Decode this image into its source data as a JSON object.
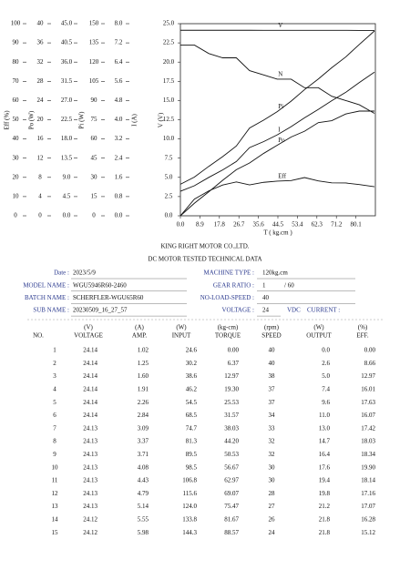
{
  "chart_data": {
    "type": "line",
    "x_label": "T ( kg.cm )",
    "xlim": [
      0,
      89
    ],
    "xticks": [
      {
        "value": 0,
        "label": "0.0"
      },
      8.9,
      17.8,
      26.7,
      35.6,
      44.5,
      53.4,
      62.3,
      71.2,
      80.1
    ],
    "x": [
      0,
      6.37,
      12.97,
      19.3,
      25.53,
      31.57,
      38.03,
      44.2,
      50.53,
      56.67,
      62.97,
      69.07,
      75.47,
      81.67,
      88.57
    ],
    "axes": [
      {
        "label": "Eff (%)",
        "ylim": [
          0,
          100
        ],
        "yticks": [
          0,
          10,
          20,
          30,
          40,
          50,
          60,
          70,
          80,
          90,
          100
        ]
      },
      {
        "label": "Po (W)",
        "ylim": [
          0,
          40
        ],
        "yticks": [
          0,
          4,
          8,
          12,
          16,
          20,
          24,
          28,
          32,
          36,
          40
        ]
      },
      {
        "ylim": [
          0,
          45
        ],
        "yticks": [
          {
            "value": 0,
            "label": "0.0"
          },
          4.5,
          {
            "value": 9,
            "label": "9.0"
          },
          13.5,
          {
            "value": 18,
            "label": "18.0"
          },
          22.5,
          {
            "value": 27,
            "label": "27.0"
          },
          31.5,
          {
            "value": 36,
            "label": "36.0"
          },
          40.5,
          {
            "value": 45,
            "label": "45.0"
          }
        ]
      },
      {
        "label": "Pi (W)",
        "ylim": [
          0,
          150
        ],
        "yticks": [
          0,
          15,
          30,
          45,
          60,
          75,
          90,
          105,
          120,
          135,
          150
        ]
      },
      {
        "label": "I (A)",
        "ylim": [
          0,
          8
        ],
        "yticks": [
          {
            "value": 0,
            "label": "0.0"
          },
          0.8,
          1.6,
          2.4,
          3.2,
          {
            "value": 4,
            "label": "4.0"
          },
          4.8,
          5.6,
          6.4,
          7.2,
          {
            "value": 8,
            "label": "8.0"
          }
        ]
      },
      {
        "label": "V (V)",
        "ylim": [
          0,
          25
        ],
        "yticks": [
          {
            "value": 0,
            "label": "0.0"
          },
          2.5,
          {
            "value": 5,
            "label": "5.0"
          },
          7.5,
          {
            "value": 10,
            "label": "10.0"
          },
          12.5,
          {
            "value": 15,
            "label": "15.0"
          },
          17.5,
          {
            "value": 20,
            "label": "20.0"
          },
          22.5,
          {
            "value": 25,
            "label": "25.0"
          }
        ]
      }
    ],
    "series": [
      {
        "name": "V",
        "color": "#111111",
        "axis": 5,
        "values": [
          24.14,
          24.14,
          24.14,
          24.14,
          24.14,
          24.14,
          24.13,
          24.13,
          24.13,
          24.13,
          24.13,
          24.13,
          24.13,
          24.12,
          24.12
        ]
      },
      {
        "name": "N",
        "color": "#111111",
        "axis": 2,
        "values": [
          40,
          40,
          38,
          37,
          37,
          34,
          33,
          32,
          32,
          30,
          30,
          28,
          27,
          26,
          24
        ]
      },
      {
        "name": "Pi",
        "color": "#111111",
        "axis": 3,
        "values": [
          24.6,
          30.2,
          38.6,
          46.2,
          54.5,
          68.5,
          74.7,
          81.3,
          89.5,
          98.5,
          106.8,
          115.6,
          124.0,
          133.8,
          144.3
        ]
      },
      {
        "name": "I",
        "color": "#111111",
        "axis": 4,
        "values": [
          1.02,
          1.25,
          1.6,
          1.91,
          2.26,
          2.84,
          3.09,
          3.37,
          3.71,
          4.08,
          4.43,
          4.79,
          5.14,
          5.55,
          5.98
        ]
      },
      {
        "name": "Po",
        "color": "#111111",
        "axis": 1,
        "values": [
          0,
          2.6,
          5.0,
          7.4,
          9.6,
          11.0,
          13.0,
          14.7,
          16.4,
          17.6,
          19.4,
          19.8,
          21.2,
          21.8,
          21.8
        ]
      },
      {
        "name": "Eff",
        "color": "#111111",
        "axis": 0,
        "values": [
          0,
          8.66,
          12.97,
          16.01,
          17.63,
          16.07,
          17.42,
          18.03,
          18.34,
          19.9,
          18.14,
          17.16,
          17.07,
          16.28,
          15.12
        ]
      }
    ]
  },
  "header": {
    "company": "KING RIGHT MOTOR CO.,LTD.",
    "subtitle": "DC MOTOR TESTED TECHNICAL DATA"
  },
  "info": {
    "left": [
      {
        "label": "Date :",
        "value": "2023/5/9"
      },
      {
        "label": "MODEL NAME :",
        "value": "WGU5946R60-2460"
      },
      {
        "label": "BATCH NAME :",
        "value": "SCHERFLER-WGU65R60"
      },
      {
        "label": "SUB NAME :",
        "value": "20230509_16_27_57"
      }
    ],
    "right": [
      {
        "label": "MACHINE TYPE :",
        "value": "120kg.cm"
      },
      {
        "label": "GEAR RATIO :",
        "value": "1",
        "value2": "/ 60"
      },
      {
        "label": "NO-LOAD-SPEED :",
        "value": "40"
      },
      {
        "label": "VOLTAGE :",
        "value": "24",
        "value2": "VDC",
        "value3": "CURRENT :"
      }
    ]
  },
  "table": {
    "units": [
      "(V)",
      "(A)",
      "(W)",
      "(kg-cm)",
      "(rpm)",
      "(W)",
      "(%)"
    ],
    "columns": [
      "NO.",
      "VOLTAGE",
      "AMP.",
      "INPUT",
      "TORQUE",
      "SPEED",
      "OUTPUT",
      "EFF."
    ],
    "rows": [
      [
        "1",
        "24.14",
        "1.02",
        "24.6",
        "0.00",
        "40",
        "0.0",
        "0.00"
      ],
      [
        "2",
        "24.14",
        "1.25",
        "30.2",
        "6.37",
        "40",
        "2.6",
        "8.66"
      ],
      [
        "3",
        "24.14",
        "1.60",
        "38.6",
        "12.97",
        "38",
        "5.0",
        "12.97"
      ],
      [
        "4",
        "24.14",
        "1.91",
        "46.2",
        "19.30",
        "37",
        "7.4",
        "16.01"
      ],
      [
        "5",
        "24.14",
        "2.26",
        "54.5",
        "25.53",
        "37",
        "9.6",
        "17.63"
      ],
      [
        "6",
        "24.14",
        "2.84",
        "68.5",
        "31.57",
        "34",
        "11.0",
        "16.07"
      ],
      [
        "7",
        "24.13",
        "3.09",
        "74.7",
        "38.03",
        "33",
        "13.0",
        "17.42"
      ],
      [
        "8",
        "24.13",
        "3.37",
        "81.3",
        "44.20",
        "32",
        "14.7",
        "18.03"
      ],
      [
        "9",
        "24.13",
        "3.71",
        "89.5",
        "50.53",
        "32",
        "16.4",
        "18.34"
      ],
      [
        "10",
        "24.13",
        "4.08",
        "98.5",
        "56.67",
        "30",
        "17.6",
        "19.90"
      ],
      [
        "11",
        "24.13",
        "4.43",
        "106.8",
        "62.97",
        "30",
        "19.4",
        "18.14"
      ],
      [
        "12",
        "24.13",
        "4.79",
        "115.6",
        "69.07",
        "28",
        "19.8",
        "17.16"
      ],
      [
        "13",
        "24.13",
        "5.14",
        "124.0",
        "75.47",
        "27",
        "21.2",
        "17.07"
      ],
      [
        "14",
        "24.12",
        "5.55",
        "133.8",
        "81.67",
        "26",
        "21.8",
        "16.28"
      ],
      [
        "15",
        "24.12",
        "5.98",
        "144.3",
        "88.57",
        "24",
        "21.8",
        "15.12"
      ]
    ]
  }
}
